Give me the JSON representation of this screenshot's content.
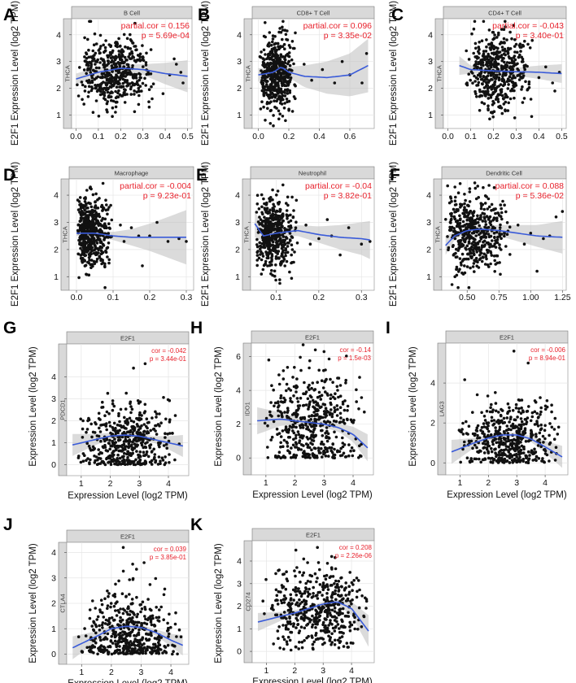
{
  "chart_data": [
    {
      "id": "A",
      "type": "scatter",
      "letter": "A",
      "title": "B Cell",
      "side_label": "THCA",
      "ylabel": "E2F1 Expression Level (log2 TPM)",
      "xlabel": "",
      "stat_line1": "partial.cor = 0.156",
      "stat_line2": "p = 5.69e-04",
      "xlim": [
        -0.02,
        0.52
      ],
      "ylim": [
        0.5,
        4.6
      ],
      "xticks": [
        "0.0",
        "0.1",
        "0.2",
        "0.3",
        "0.4",
        "0.5"
      ],
      "xtick_values": [
        0,
        0.1,
        0.2,
        0.3,
        0.4,
        0.5
      ],
      "yticks": [
        "1",
        "2",
        "3",
        "4"
      ],
      "ytick_values": [
        1,
        2,
        3,
        4
      ],
      "fit": {
        "x": [
          0,
          0.1,
          0.2,
          0.3,
          0.4,
          0.5
        ],
        "y": [
          2.35,
          2.6,
          2.75,
          2.7,
          2.55,
          2.45
        ]
      },
      "band": [
        0.2,
        0.2,
        0.15,
        0.2,
        0.4,
        0.6
      ],
      "points": {
        "n": 480,
        "xmin": 0.0,
        "xmax": 0.35,
        "xmode": 0.18,
        "ymean": 2.6,
        "ysd": 0.65,
        "outliers": [
          [
            0.42,
            2.5
          ],
          [
            0.45,
            2.9
          ],
          [
            0.48,
            2.2
          ],
          [
            0.44,
            3.1
          ],
          [
            0.39,
            1.8
          ],
          [
            0.47,
            2.6
          ]
        ],
        "seed": 11
      }
    },
    {
      "id": "B",
      "type": "scatter",
      "letter": "B",
      "title": "CD8+ T Cell",
      "side_label": "THCA",
      "ylabel": "E2F1 Expression Level (log2 TPM)",
      "xlabel": "",
      "stat_line1": "partial.cor = 0.096",
      "stat_line2": "p = 3.35e-02",
      "xlim": [
        -0.04,
        0.76
      ],
      "ylim": [
        0.5,
        4.6
      ],
      "xticks": [
        "0.0",
        "0.2",
        "0.4",
        "0.6"
      ],
      "xtick_values": [
        0,
        0.2,
        0.4,
        0.6
      ],
      "yticks": [
        "1",
        "2",
        "3",
        "4"
      ],
      "ytick_values": [
        1,
        2,
        3,
        4
      ],
      "fit": {
        "x": [
          0,
          0.1,
          0.15,
          0.2,
          0.3,
          0.45,
          0.6,
          0.72
        ],
        "y": [
          2.5,
          2.6,
          2.8,
          2.6,
          2.45,
          2.4,
          2.5,
          2.85
        ]
      },
      "band": [
        0.25,
        0.15,
        0.2,
        0.2,
        0.4,
        0.6,
        0.8,
        1.0
      ],
      "points": {
        "n": 480,
        "xmin": 0.0,
        "xmax": 0.25,
        "xmode": 0.1,
        "ymean": 2.6,
        "ysd": 0.65,
        "outliers": [
          [
            0.3,
            2.9
          ],
          [
            0.35,
            2.3
          ],
          [
            0.42,
            2.7
          ],
          [
            0.5,
            2.2
          ],
          [
            0.55,
            3.0
          ],
          [
            0.6,
            2.5
          ],
          [
            0.68,
            2.2
          ],
          [
            0.71,
            3.3
          ]
        ],
        "seed": 23
      }
    },
    {
      "id": "C",
      "type": "scatter",
      "letter": "C",
      "title": "CD4+ T Cell",
      "side_label": "THCA",
      "ylabel": "E2F1 Expression Level (log2 TPM)",
      "xlabel": "",
      "stat_line1": "partial.cor = -0.043",
      "stat_line2": "p = 3.40e-01",
      "xlim": [
        -0.02,
        0.52
      ],
      "ylim": [
        0.5,
        4.6
      ],
      "xticks": [
        "0.0",
        "0.1",
        "0.2",
        "0.3",
        "0.4",
        "0.5"
      ],
      "xtick_values": [
        0,
        0.1,
        0.2,
        0.3,
        0.4,
        0.5
      ],
      "yticks": [
        "1",
        "2",
        "3",
        "4"
      ],
      "ytick_values": [
        1,
        2,
        3,
        4
      ],
      "fit": {
        "x": [
          0.05,
          0.1,
          0.2,
          0.3,
          0.4,
          0.5
        ],
        "y": [
          2.85,
          2.7,
          2.65,
          2.62,
          2.6,
          2.55
        ]
      },
      "band": [
        0.35,
        0.15,
        0.1,
        0.15,
        0.25,
        0.35
      ],
      "points": {
        "n": 480,
        "xmin": 0.07,
        "xmax": 0.38,
        "xmode": 0.2,
        "ymean": 2.6,
        "ysd": 0.7,
        "outliers": [
          [
            0.4,
            2.4
          ],
          [
            0.43,
            2.8
          ],
          [
            0.46,
            2.2
          ],
          [
            0.49,
            2.6
          ],
          [
            0.47,
            1.9
          ]
        ],
        "seed": 37
      }
    },
    {
      "id": "D",
      "type": "scatter",
      "letter": "D",
      "title": "Macrophage",
      "side_label": "THCA",
      "ylabel": "E2F1 Expression Level (log2 TPM)",
      "xlabel": "",
      "stat_line1": "partial.cor = -0.004",
      "stat_line2": "p = 9.23e-01",
      "xlim": [
        -0.02,
        0.32
      ],
      "ylim": [
        0.5,
        4.6
      ],
      "xticks": [
        "0.0",
        "0.1",
        "0.2",
        "0.3"
      ],
      "xtick_values": [
        0,
        0.1,
        0.2,
        0.3
      ],
      "yticks": [
        "1",
        "2",
        "3",
        "4"
      ],
      "ytick_values": [
        1,
        2,
        3,
        4
      ],
      "fit": {
        "x": [
          0,
          0.05,
          0.1,
          0.15,
          0.2,
          0.25,
          0.3
        ],
        "y": [
          2.6,
          2.6,
          2.5,
          2.45,
          2.45,
          2.45,
          2.45
        ]
      },
      "band": [
        0.1,
        0.1,
        0.15,
        0.3,
        0.5,
        0.75,
        1.0
      ],
      "points": {
        "n": 480,
        "xmin": 0.0,
        "xmax": 0.1,
        "xmode": 0.02,
        "ymean": 2.6,
        "ysd": 0.65,
        "outliers": [
          [
            0.12,
            2.9
          ],
          [
            0.13,
            2.3
          ],
          [
            0.15,
            2.8
          ],
          [
            0.17,
            2.5
          ],
          [
            0.18,
            1.4
          ],
          [
            0.2,
            2.5
          ],
          [
            0.22,
            3.0
          ],
          [
            0.25,
            2.3
          ],
          [
            0.28,
            2.4
          ],
          [
            0.3,
            2.3
          ]
        ],
        "seed": 41
      }
    },
    {
      "id": "E",
      "type": "scatter",
      "letter": "E",
      "title": "Neutrophil",
      "side_label": "THCA",
      "ylabel": "E2F1 Expression Level (log2 TPM)",
      "xlabel": "",
      "stat_line1": "partial.cor = -0.04",
      "stat_line2": "p = 3.82e-01",
      "xlim": [
        0.04,
        0.33
      ],
      "ylim": [
        0.5,
        4.6
      ],
      "xticks": [
        "0.1",
        "0.2",
        "0.3"
      ],
      "xtick_values": [
        0.1,
        0.2,
        0.3
      ],
      "yticks": [
        "1",
        "2",
        "3",
        "4"
      ],
      "ytick_values": [
        1,
        2,
        3,
        4
      ],
      "fit": {
        "x": [
          0.05,
          0.07,
          0.1,
          0.15,
          0.2,
          0.25,
          0.3,
          0.32
        ],
        "y": [
          2.95,
          2.5,
          2.6,
          2.7,
          2.55,
          2.45,
          2.4,
          2.35
        ]
      },
      "band": [
        0.5,
        0.2,
        0.12,
        0.2,
        0.3,
        0.45,
        0.6,
        0.7
      ],
      "points": {
        "n": 480,
        "xmin": 0.05,
        "xmax": 0.15,
        "xmode": 0.08,
        "ymean": 2.6,
        "ysd": 0.65,
        "outliers": [
          [
            0.17,
            2.9
          ],
          [
            0.18,
            2.2
          ],
          [
            0.2,
            2.4
          ],
          [
            0.22,
            3.1
          ],
          [
            0.23,
            2.5
          ],
          [
            0.25,
            1.8
          ],
          [
            0.27,
            2.8
          ],
          [
            0.3,
            2.2
          ],
          [
            0.32,
            2.3
          ]
        ],
        "seed": 53
      }
    },
    {
      "id": "F",
      "type": "scatter",
      "letter": "F",
      "title": "Dendritic Cell",
      "side_label": "THCA",
      "ylabel": "E2F1 Expression Level (log2 TPM)",
      "xlabel": "",
      "stat_line1": "partial.cor = 0.088",
      "stat_line2": "p = 5.36e-02",
      "xlim": [
        0.3,
        1.28
      ],
      "ylim": [
        0.5,
        4.6
      ],
      "xticks": [
        "0.50",
        "0.75",
        "1.00",
        "1.25"
      ],
      "xtick_values": [
        0.5,
        0.75,
        1.0,
        1.25
      ],
      "yticks": [
        "1",
        "2",
        "3",
        "4"
      ],
      "ytick_values": [
        1,
        2,
        3,
        4
      ],
      "fit": {
        "x": [
          0.33,
          0.4,
          0.5,
          0.6,
          0.75,
          0.9,
          1.05,
          1.25
        ],
        "y": [
          2.15,
          2.5,
          2.7,
          2.75,
          2.7,
          2.6,
          2.5,
          2.45
        ]
      },
      "band": [
        0.35,
        0.15,
        0.1,
        0.12,
        0.2,
        0.3,
        0.4,
        0.6
      ],
      "points": {
        "n": 480,
        "xmin": 0.33,
        "xmax": 0.85,
        "xmode": 0.5,
        "ymean": 2.6,
        "ysd": 0.65,
        "outliers": [
          [
            0.9,
            2.9
          ],
          [
            0.95,
            2.2
          ],
          [
            1.0,
            2.6
          ],
          [
            1.05,
            1.2
          ],
          [
            1.1,
            2.4
          ],
          [
            1.15,
            2.5
          ],
          [
            1.2,
            3.2
          ],
          [
            1.25,
            3.4
          ]
        ],
        "seed": 67
      }
    },
    {
      "id": "G",
      "type": "scatter",
      "letter": "G",
      "title": "E2F1",
      "side_label": "PDCD1",
      "ylabel": "Expression Level (log2 TPM)",
      "xlabel": "Expression Level (log2 TPM)",
      "stat_line1": "cor = -0.042",
      "stat_line2": "p = 3.44e-01",
      "xlim": [
        0.5,
        4.7
      ],
      "ylim": [
        -0.5,
        5.5
      ],
      "xticks": [
        "1",
        "2",
        "3",
        "4"
      ],
      "xtick_values": [
        1,
        2,
        3,
        4
      ],
      "yticks": [
        "0",
        "1",
        "2",
        "3",
        "4"
      ],
      "ytick_values": [
        0,
        1,
        2,
        3,
        4
      ],
      "fit": {
        "x": [
          0.7,
          1.5,
          2.0,
          2.5,
          3.0,
          3.5,
          4.0,
          4.5
        ],
        "y": [
          0.9,
          1.15,
          1.3,
          1.35,
          1.3,
          1.15,
          1.0,
          0.85
        ]
      },
      "band": [
        0.5,
        0.25,
        0.15,
        0.12,
        0.12,
        0.15,
        0.3,
        0.5
      ],
      "points": {
        "n": 480,
        "xmin": 0.8,
        "xmax": 4.5,
        "xmode": 2.6,
        "ymean": 0.9,
        "ysd": 0.9,
        "floor": 0,
        "outliers": [
          [
            3.2,
            4.6
          ],
          [
            2.8,
            4.4
          ]
        ],
        "seed": 71
      }
    },
    {
      "id": "H",
      "type": "scatter",
      "letter": "H",
      "title": "E2F1",
      "side_label": "IDO1",
      "ylabel": "Expression Level (log2 TPM)",
      "xlabel": "Expression Level (log2 TPM)",
      "stat_line1": "cor = -0.14",
      "stat_line2": "p = 1.5e-03",
      "xlim": [
        0.5,
        4.7
      ],
      "ylim": [
        -1.0,
        6.8
      ],
      "xticks": [
        "1",
        "2",
        "3",
        "4"
      ],
      "xtick_values": [
        1,
        2,
        3,
        4
      ],
      "yticks": [
        "0",
        "2",
        "4",
        "6"
      ],
      "ytick_values": [
        0,
        2,
        4,
        6
      ],
      "fit": {
        "x": [
          0.7,
          1.5,
          2.0,
          2.5,
          3.0,
          3.5,
          4.0,
          4.5
        ],
        "y": [
          2.2,
          2.3,
          2.2,
          2.1,
          2.0,
          1.8,
          1.4,
          0.6
        ]
      },
      "band": [
        0.8,
        0.4,
        0.25,
        0.2,
        0.2,
        0.25,
        0.45,
        0.8
      ],
      "points": {
        "n": 480,
        "xmin": 0.8,
        "xmax": 4.5,
        "xmode": 2.6,
        "ymean": 2.0,
        "ysd": 1.6,
        "floor": 0,
        "outliers": [
          [
            3.0,
            6.3
          ],
          [
            2.7,
            6.4
          ]
        ],
        "seed": 83
      }
    },
    {
      "id": "I",
      "type": "scatter",
      "letter": "I",
      "title": "E2F1",
      "side_label": "LAG3",
      "ylabel": "Expression Level (log2 TPM)",
      "xlabel": "Expression Level (log2 TPM)",
      "stat_line1": "cor = -0.006",
      "stat_line2": "p = 8.94e-01",
      "xlim": [
        0.5,
        4.8
      ],
      "ylim": [
        -0.6,
        6.0
      ],
      "xticks": [
        "1",
        "2",
        "3",
        "4"
      ],
      "xtick_values": [
        1,
        2,
        3,
        4
      ],
      "yticks": [
        "0",
        "2",
        "4"
      ],
      "ytick_values": [
        0,
        2,
        4
      ],
      "fit": {
        "x": [
          0.7,
          1.5,
          2.0,
          2.5,
          3.0,
          3.5,
          4.0,
          4.6
        ],
        "y": [
          0.55,
          1.0,
          1.25,
          1.4,
          1.4,
          1.2,
          0.8,
          0.3
        ]
      },
      "band": [
        0.6,
        0.25,
        0.15,
        0.12,
        0.12,
        0.15,
        0.3,
        0.55
      ],
      "points": {
        "n": 480,
        "xmin": 0.8,
        "xmax": 4.6,
        "xmode": 2.7,
        "ymean": 1.1,
        "ysd": 1.0,
        "floor": 0,
        "outliers": [
          [
            2.9,
            5.6
          ],
          [
            3.4,
            5.0
          ]
        ],
        "seed": 97
      }
    },
    {
      "id": "J",
      "type": "scatter",
      "letter": "J",
      "title": "E2F1",
      "side_label": "CTLA4",
      "ylabel": "Expression Level (log2 TPM)",
      "xlabel": "Expression Level (log2 TPM)",
      "stat_line1": "cor = 0.039",
      "stat_line2": "p = 3.85e-01",
      "xlim": [
        0.5,
        4.6
      ],
      "ylim": [
        -0.4,
        4.4
      ],
      "xticks": [
        "1",
        "2",
        "3",
        "4"
      ],
      "xtick_values": [
        1,
        2,
        3,
        4
      ],
      "yticks": [
        "0",
        "1",
        "2",
        "3",
        "4"
      ],
      "ytick_values": [
        0,
        1,
        2,
        3,
        4
      ],
      "fit": {
        "x": [
          0.7,
          1.5,
          2.0,
          2.5,
          3.0,
          3.5,
          4.0,
          4.4
        ],
        "y": [
          0.25,
          0.7,
          1.0,
          1.1,
          1.05,
          0.85,
          0.55,
          0.35
        ]
      },
      "band": [
        0.45,
        0.2,
        0.12,
        0.1,
        0.1,
        0.12,
        0.25,
        0.4
      ],
      "points": {
        "n": 480,
        "xmin": 0.8,
        "xmax": 4.4,
        "xmode": 2.6,
        "ymean": 0.7,
        "ysd": 0.8,
        "floor": 0,
        "outliers": [
          [
            2.4,
            4.2
          ],
          [
            3.1,
            3.6
          ]
        ],
        "seed": 101
      }
    },
    {
      "id": "K",
      "type": "scatter",
      "letter": "K",
      "title": "E2F1",
      "side_label": "CD274",
      "ylabel": "Expression Level (log2 TPM)",
      "xlabel": "Expression Level (log2 TPM)",
      "stat_line1": "cor = 0.208",
      "stat_line2": "p = 2.26e-06",
      "xlim": [
        0.5,
        4.8
      ],
      "ylim": [
        -0.5,
        4.9
      ],
      "xticks": [
        "1",
        "2",
        "3",
        "4"
      ],
      "xtick_values": [
        1,
        2,
        3,
        4
      ],
      "yticks": [
        "0",
        "1",
        "2",
        "3",
        "4"
      ],
      "ytick_values": [
        0,
        1,
        2,
        3,
        4
      ],
      "fit": {
        "x": [
          0.7,
          1.5,
          2.0,
          2.5,
          3.0,
          3.5,
          4.0,
          4.6
        ],
        "y": [
          1.3,
          1.55,
          1.7,
          1.9,
          2.1,
          2.2,
          1.9,
          0.9
        ]
      },
      "band": [
        0.4,
        0.2,
        0.12,
        0.1,
        0.1,
        0.12,
        0.3,
        0.7
      ],
      "points": {
        "n": 480,
        "xmin": 0.8,
        "xmax": 4.6,
        "xmode": 3.0,
        "ymean": 1.9,
        "ysd": 0.9,
        "floor": 0,
        "outliers": [
          [
            2.8,
            4.6
          ],
          [
            3.3,
            4.2
          ]
        ],
        "seed": 113
      }
    }
  ]
}
